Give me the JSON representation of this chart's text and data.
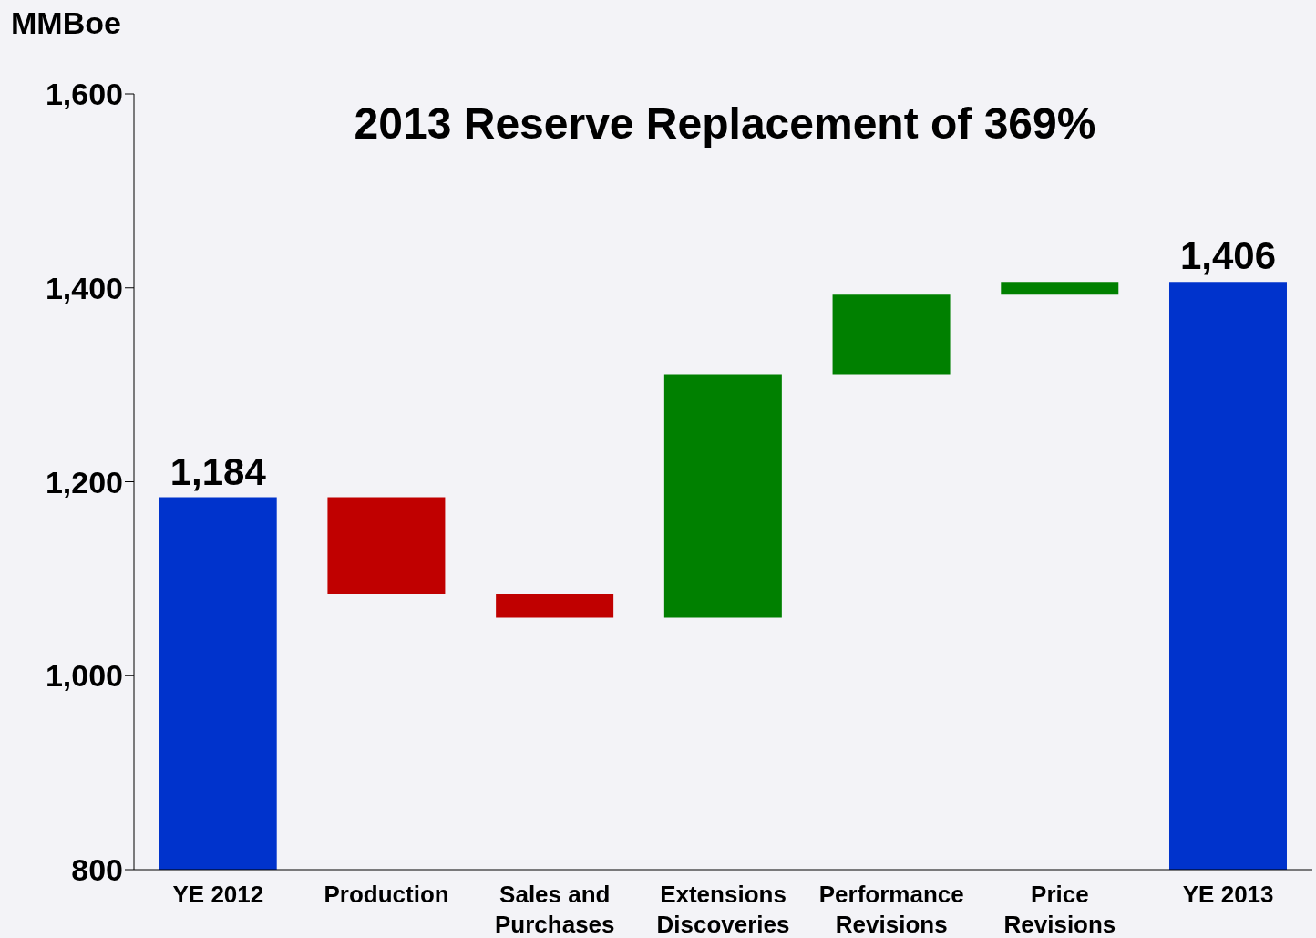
{
  "chart_data": {
    "type": "bar",
    "title": "2013 Reserve Replacement of 369%",
    "ylabel": "MMBoe",
    "categories": [
      "YE 2012",
      "Production",
      "Sales and Purchases",
      "Extensions Discoveries",
      "Performance Revisions",
      "Price Revisions",
      "YE 2013"
    ],
    "values": [
      1184,
      -100,
      -24,
      251,
      82,
      13,
      1406
    ],
    "base": [
      null,
      1184,
      1084,
      1060,
      1311,
      1393,
      null
    ],
    "colors": [
      "#0033cc",
      "#c00000",
      "#c00000",
      "#008000",
      "#008000",
      "#008000",
      "#0033cc"
    ],
    "value_labels": [
      "1,184",
      null,
      null,
      null,
      null,
      null,
      "1,406"
    ],
    "ylim": [
      800,
      1600
    ],
    "yticks": [
      {
        "value": 800,
        "label": "800"
      },
      {
        "value": 1000,
        "label": "1,000"
      },
      {
        "value": 1200,
        "label": "1,200"
      },
      {
        "value": 1400,
        "label": "1,400"
      },
      {
        "value": 1600,
        "label": "1,600"
      }
    ],
    "grid": false,
    "legend": false
  }
}
